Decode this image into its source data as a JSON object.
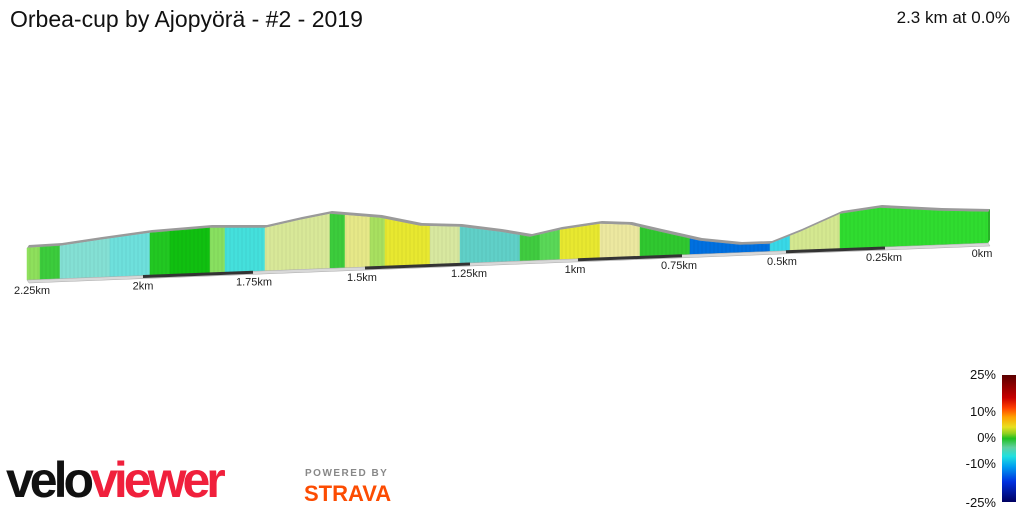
{
  "header": {
    "title": "Orbea-cup by Ajopyörä - #2 - 2019",
    "summary": "2.3 km at 0.0%"
  },
  "chart_data": {
    "type": "area",
    "title": "Orbea-cup by Ajopyörä - #2 - 2019",
    "x_direction": "reversed",
    "x_unit": "km",
    "tick_labels": [
      "2.25km",
      "2km",
      "1.75km",
      "1.5km",
      "1.25km",
      "1km",
      "0.75km",
      "0.5km",
      "0.25km",
      "0km"
    ],
    "tick_values": [
      2.25,
      2,
      1.75,
      1.5,
      1.25,
      1,
      0.75,
      0.5,
      0.25,
      0
    ],
    "segment_colors": [
      "#8ee05c",
      "#3ccc3c",
      "#84e0d4",
      "#6ee0dc",
      "#22c822",
      "#10c010",
      "#88e060",
      "#44e0dc",
      "#d8e898",
      "#3ccc3c",
      "#e6e888",
      "#a8e060",
      "#e8e830",
      "#d8e8a0",
      "#60d0c8",
      "#40cc40",
      "#5ad858",
      "#e8e830",
      "#ece8a0",
      "#30c830",
      "#0070e0",
      "#38d8e8",
      "#d4e890",
      "#30dc30"
    ],
    "legend": {
      "labels": [
        "25%",
        "10%",
        "0%",
        "-10%",
        "-25%"
      ],
      "colors": [
        "#5a0000",
        "#c80000",
        "#ffa000",
        "#e8e020",
        "#20c020",
        "#20e0e0",
        "#0030e0",
        "#000060"
      ]
    }
  },
  "branding": {
    "velo": "velo",
    "viewer": "viewer",
    "powered_by": "POWERED BY",
    "strava": "STRAVA"
  }
}
